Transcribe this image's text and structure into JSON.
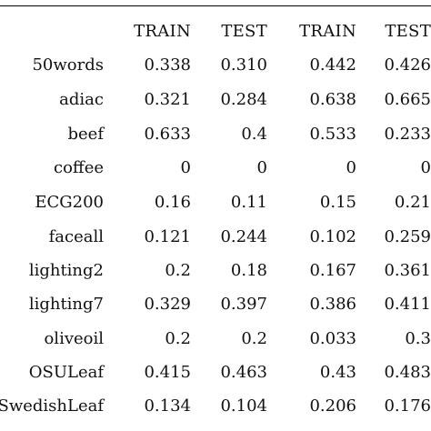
{
  "table": {
    "headers": [
      "TRAIN",
      "TEST",
      "TRAIN",
      "TEST"
    ],
    "rows": [
      {
        "name": "50words",
        "values": [
          "0.338",
          "0.310",
          "0.442",
          "0.426"
        ]
      },
      {
        "name": "adiac",
        "values": [
          "0.321",
          "0.284",
          "0.638",
          "0.665"
        ]
      },
      {
        "name": "beef",
        "values": [
          "0.633",
          "0.4",
          "0.533",
          "0.233"
        ]
      },
      {
        "name": "coffee",
        "values": [
          "0",
          "0",
          "0",
          "0"
        ]
      },
      {
        "name": "ECG200",
        "values": [
          "0.16",
          "0.11",
          "0.15",
          "0.21"
        ]
      },
      {
        "name": "faceall",
        "values": [
          "0.121",
          "0.244",
          "0.102",
          "0.259"
        ]
      },
      {
        "name": "lighting2",
        "values": [
          "0.2",
          "0.18",
          "0.167",
          "0.361"
        ]
      },
      {
        "name": "lighting7",
        "values": [
          "0.329",
          "0.397",
          "0.386",
          "0.411"
        ]
      },
      {
        "name": "oliveoil",
        "values": [
          "0.2",
          "0.2",
          "0.033",
          "0.3"
        ]
      },
      {
        "name": "OSULeaf",
        "values": [
          "0.415",
          "0.463",
          "0.43",
          "0.483"
        ]
      },
      {
        "name": "SwedishLeaf",
        "values": [
          "0.134",
          "0.104",
          "0.206",
          "0.176"
        ]
      }
    ]
  }
}
